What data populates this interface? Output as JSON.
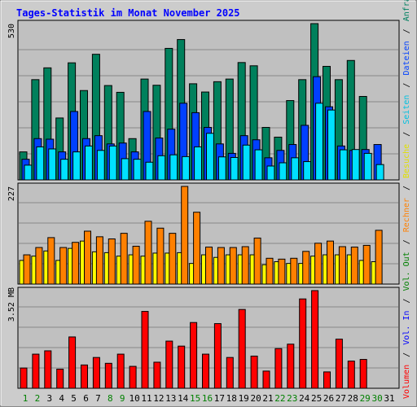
{
  "chart_data": [
    {
      "type": "bar",
      "title": "Tages-Statistik im Monat November 2025",
      "ymax_label": "530",
      "ylim": [
        0,
        530
      ],
      "series": [
        {
          "name": "Anfragen",
          "color": "#00805c",
          "values": [
            95,
            340,
            380,
            210,
            397,
            303,
            426,
            320,
            297,
            140,
            342,
            321,
            446,
            476,
            326,
            298,
            333,
            342,
            398,
            387,
            178,
            145,
            269,
            340,
            530,
            385,
            340,
            405,
            283,
            0,
            0
          ]
        },
        {
          "name": "Dateien",
          "color": "#0040ff",
          "values": [
            70,
            140,
            138,
            95,
            232,
            140,
            150,
            122,
            125,
            95,
            232,
            142,
            172,
            260,
            228,
            178,
            122,
            90,
            150,
            136,
            75,
            100,
            120,
            185,
            350,
            248,
            115,
            100,
            103,
            120,
            0
          ]
        },
        {
          "name": "Seiten",
          "color": "#00e0ff",
          "values": [
            50,
            112,
            105,
            70,
            95,
            115,
            100,
            115,
            72,
            70,
            60,
            82,
            85,
            79,
            112,
            158,
            78,
            76,
            118,
            102,
            47,
            58,
            75,
            62,
            260,
            237,
            102,
            103,
            90,
            52,
            0
          ]
        }
      ],
      "days": [
        "1",
        "2",
        "3",
        "4",
        "5",
        "6",
        "7",
        "8",
        "9",
        "10",
        "11",
        "12",
        "13",
        "14",
        "15",
        "16",
        "17",
        "18",
        "19",
        "20",
        "21",
        "22",
        "23",
        "24",
        "25",
        "26",
        "27",
        "28",
        "29",
        "30",
        "31"
      ],
      "weekend_days": [
        "1",
        "2",
        "8",
        "9",
        "15",
        "16",
        "22",
        "23",
        "29",
        "30"
      ],
      "legend_right": [
        "Anfragen",
        "/",
        "Dateien",
        "/",
        "Seiten",
        "/"
      ]
    },
    {
      "type": "bar",
      "ymax_label": "227",
      "ylim": [
        0,
        227
      ],
      "series": [
        {
          "name": "Besuche",
          "color": "#ffff00",
          "values": [
            55,
            65,
            77,
            55,
            83,
            100,
            75,
            73,
            65,
            68,
            65,
            72,
            72,
            73,
            48,
            68,
            62,
            68,
            68,
            68,
            45,
            52,
            48,
            48,
            65,
            68,
            68,
            68,
            55,
            52,
            0
          ]
        },
        {
          "name": "Rechner",
          "color": "#ff8000",
          "values": [
            68,
            85,
            108,
            85,
            97,
            123,
            110,
            105,
            118,
            88,
            146,
            130,
            118,
            227,
            167,
            86,
            85,
            85,
            87,
            107,
            60,
            58,
            60,
            76,
            95,
            100,
            87,
            86,
            90,
            125,
            0
          ]
        }
      ],
      "legend_right": [
        "Besuche",
        "/",
        "Rechner",
        "/",
        "Vol. Out",
        "/"
      ]
    },
    {
      "type": "bar",
      "ymax_label": "3.52 MB",
      "ylim": [
        0,
        3.52
      ],
      "series": [
        {
          "name": "Volumen",
          "color": "#ff0000",
          "values": [
            0.73,
            1.23,
            1.35,
            0.69,
            1.85,
            0.84,
            1.11,
            0.9,
            1.23,
            0.79,
            2.77,
            0.94,
            1.7,
            1.52,
            2.37,
            1.23,
            2.33,
            1.11,
            2.84,
            1.16,
            0.62,
            1.43,
            1.59,
            3.22,
            3.52,
            0.59,
            1.77,
            0.98,
            1.04,
            0,
            0
          ]
        }
      ],
      "legend_right": [
        "Volumen",
        "/",
        "Vol. In",
        "/"
      ]
    }
  ],
  "colors": {
    "background": "#cccccc",
    "plot_bg": "#c0c0c0",
    "grid": "#888888",
    "title": "#0000ff",
    "weekday_label": "#000000",
    "weekend_label": "#008000",
    "vol_out_label": "#008000",
    "vol_in_label": "#0000ff",
    "legend_slash": "#000000"
  }
}
